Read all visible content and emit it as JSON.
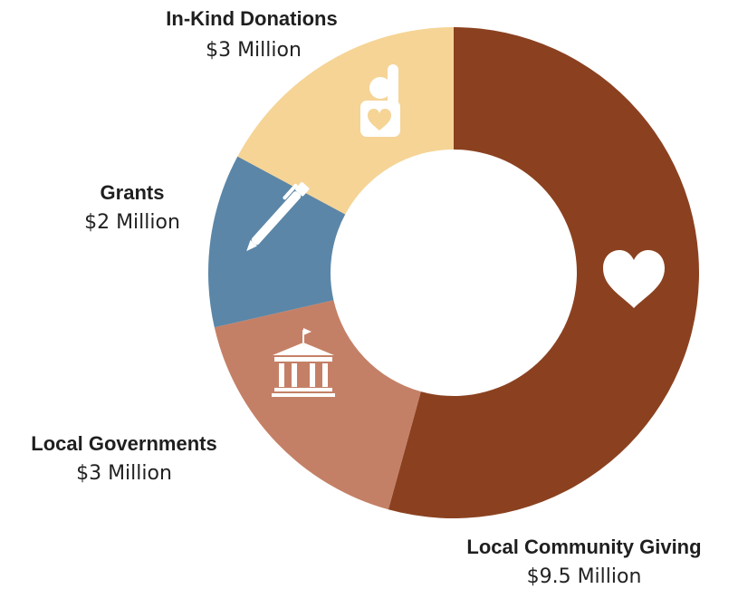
{
  "chart_data": {
    "type": "pie",
    "variant": "donut",
    "categories": [
      "Local Community Giving",
      "Local Governments",
      "Grants",
      "In-Kind Donations"
    ],
    "values": [
      9.5,
      3,
      2,
      3
    ],
    "value_labels": [
      "$9.5 Million",
      "$3 Million",
      "$2 Million",
      "$3 Million"
    ],
    "colors": [
      "#8b4120",
      "#c48066",
      "#5b86a7",
      "#f5d496"
    ],
    "icons": [
      "heart-icon",
      "government-building-icon",
      "pen-icon",
      "volunteer-hand-heart-icon"
    ],
    "legend": "none"
  }
}
